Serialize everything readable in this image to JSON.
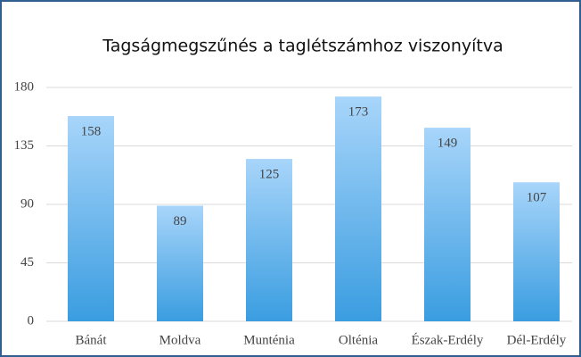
{
  "chart_data": {
    "type": "bar",
    "title": "Tagságmegszűnés a taglétszámhoz viszonyítva",
    "categories": [
      "Bánát",
      "Moldva",
      "Munténia",
      "Olténia",
      "Észak-Erdély",
      "Dél-Erdély"
    ],
    "values": [
      158,
      89,
      125,
      173,
      149,
      107
    ],
    "color": "#3a9de0",
    "ylim": [
      0,
      180
    ],
    "yticks": [
      0,
      45,
      90,
      135,
      180
    ],
    "grid": true
  }
}
